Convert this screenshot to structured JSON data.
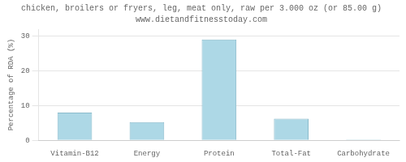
{
  "chart_data": {
    "type": "bar",
    "title": "chicken, broilers or fryers, leg, meat only, raw per 3.000 oz (or 85.00 g)",
    "subtitle": "www.dietandfitnesstoday.com",
    "categories": [
      "Vitamin-B12",
      "Energy",
      "Protein",
      "Total-Fat",
      "Carbohydrate"
    ],
    "values": [
      8.0,
      5.25,
      29.0,
      6.25,
      0.25
    ],
    "color": "#add8e6",
    "ylabel": "Percentage of RDA (%)",
    "ylim": [
      0,
      32
    ],
    "yticks": [
      0,
      10,
      20,
      30
    ],
    "grid": true
  }
}
